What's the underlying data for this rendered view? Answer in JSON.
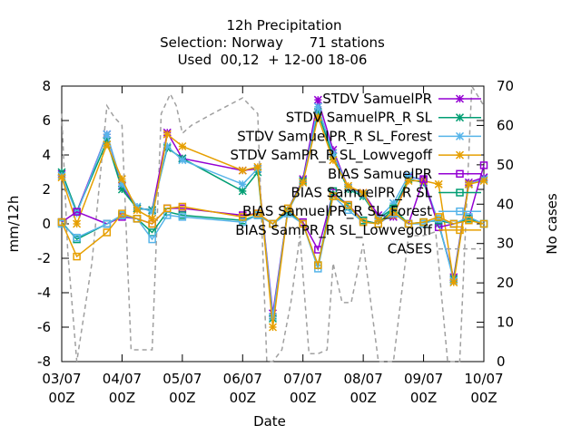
{
  "chart_data": {
    "type": "line",
    "title_lines": [
      "12h Precipitation",
      "Selection: Norway      71 stations",
      "Used  00,12  + 12-00 18-06"
    ],
    "xlabel": "Date",
    "ylabel": "mm/12h",
    "y2label": "No cases",
    "xlim": [
      0,
      14
    ],
    "ylim": [
      -8,
      8
    ],
    "y2lim": [
      0,
      70
    ],
    "x_ticks": [
      {
        "x": 0,
        "line1": "03/07",
        "line2": "00Z"
      },
      {
        "x": 2,
        "line1": "04/07",
        "line2": "00Z"
      },
      {
        "x": 4,
        "line1": "05/07",
        "line2": "00Z"
      },
      {
        "x": 6,
        "line1": "06/07",
        "line2": "00Z"
      },
      {
        "x": 8,
        "line1": "07/07",
        "line2": "00Z"
      },
      {
        "x": 10,
        "line1": "08/07",
        "line2": "00Z"
      },
      {
        "x": 12,
        "line1": "09/07",
        "line2": "00Z"
      },
      {
        "x": 14,
        "line1": "10/07",
        "line2": "00Z"
      }
    ],
    "y_ticks": [
      "-8",
      "-6",
      "-4",
      "-2",
      "0",
      "2",
      "4",
      "6",
      "8"
    ],
    "y2_ticks": [
      "0",
      "10",
      "20",
      "30",
      "40",
      "50",
      "60",
      "70"
    ],
    "x": [
      0,
      0.5,
      1.5,
      2,
      2.5,
      3,
      3.5,
      4,
      6,
      6.5,
      7,
      7.5,
      8,
      8.5,
      9,
      9.5,
      10,
      10.5,
      11,
      11.5,
      12,
      12.5,
      13,
      13.5,
      14
    ],
    "series": [
      {
        "name": "STDV SamuelPR",
        "color": "#9400d3",
        "marker": "x",
        "axis": "y1",
        "values": [
          2.9,
          0.7,
          5.2,
          2.2,
          0.9,
          0.8,
          5.3,
          3.8,
          3.1,
          3.2,
          -5.2,
          0.8,
          2.6,
          7.2,
          4.3,
          2.1,
          1.8,
          0.5,
          0.4,
          2.7,
          2.6,
          0.0,
          -3.1,
          2.4,
          2.7
        ]
      },
      {
        "name": "STDV SamuelPR_R SL",
        "color": "#009e73",
        "marker": "x",
        "axis": "y1",
        "values": [
          3.0,
          0.7,
          4.8,
          2.0,
          0.9,
          0.8,
          4.4,
          3.8,
          1.9,
          3.0,
          -5.5,
          0.8,
          2.5,
          6.5,
          3.9,
          2.0,
          1.6,
          0.3,
          0.9,
          2.6,
          2.4,
          0.0,
          -3.2,
          2.3,
          2.6
        ]
      },
      {
        "name": "STDV SamuelPR_R SL_Forest",
        "color": "#56b4e9",
        "marker": "x",
        "axis": "y1",
        "values": [
          2.8,
          0.6,
          5.2,
          2.3,
          1.0,
          0.7,
          4.5,
          3.7,
          2.3,
          3.2,
          -5.4,
          0.7,
          2.4,
          6.8,
          4.1,
          2.1,
          1.7,
          0.3,
          1.2,
          2.8,
          2.5,
          0.1,
          -3.3,
          2.3,
          2.6
        ]
      },
      {
        "name": "STDV SamPR_R SL_Lowvegoff",
        "color": "#e69f00",
        "marker": "x",
        "axis": "y1",
        "values": [
          2.7,
          0.0,
          4.6,
          2.6,
          0.8,
          0.3,
          5.2,
          4.5,
          3.1,
          3.3,
          -6.0,
          0.8,
          2.4,
          6.2,
          3.7,
          2.2,
          1.8,
          0.2,
          0.5,
          2.5,
          2.5,
          2.3,
          -3.4,
          2.3,
          2.5
        ]
      },
      {
        "name": "BIAS SamuelPR",
        "color": "#9400d3",
        "marker": "square",
        "axis": "y1",
        "values": [
          0.1,
          0.7,
          0.0,
          0.4,
          0.3,
          0.0,
          0.9,
          0.9,
          0.5,
          0.6,
          0.0,
          0.7,
          0.1,
          -1.5,
          1.8,
          1.1,
          0.2,
          0.0,
          0.6,
          0.0,
          2.6,
          -0.2,
          0.0,
          0.3,
          3.4
        ]
      },
      {
        "name": "BIAS SamuelPR_R SL",
        "color": "#009e73",
        "marker": "square",
        "axis": "y1",
        "values": [
          0.1,
          -0.9,
          0.0,
          0.5,
          0.3,
          -0.5,
          0.7,
          0.5,
          0.2,
          0.5,
          0.0,
          0.7,
          0.0,
          -2.4,
          1.9,
          1.0,
          0.2,
          0.0,
          0.9,
          0.0,
          0.1,
          0.2,
          0.0,
          0.3,
          0.0
        ]
      },
      {
        "name": "BIAS SamuelPR_R SL_Forest",
        "color": "#56b4e9",
        "marker": "square",
        "axis": "y1",
        "values": [
          0.0,
          -0.8,
          0.0,
          0.5,
          0.3,
          -0.9,
          0.5,
          0.4,
          0.1,
          0.5,
          0.0,
          0.6,
          0.0,
          -2.6,
          1.6,
          0.8,
          0.1,
          0.0,
          0.6,
          0.0,
          0.0,
          0.3,
          0.0,
          0.4,
          0.0
        ]
      },
      {
        "name": "BIAS SamPR_R SL_Lowvegoff",
        "color": "#e69f00",
        "marker": "square",
        "axis": "y1",
        "values": [
          0.1,
          -1.9,
          -0.5,
          0.6,
          0.3,
          0.0,
          0.9,
          1.0,
          0.4,
          0.6,
          0.0,
          0.9,
          0.0,
          -2.4,
          1.6,
          1.1,
          0.1,
          0.0,
          0.7,
          0.0,
          0.1,
          0.4,
          0.0,
          0.2,
          0.0
        ]
      }
    ],
    "cases": {
      "name": "CASES",
      "color": "#a0a0a0",
      "axis": "y2",
      "x": [
        0,
        0.2,
        0.5,
        1.0,
        1.5,
        1.75,
        2.0,
        2.3,
        2.7,
        3.0,
        3.3,
        3.6,
        3.8,
        4.0,
        4.3,
        5.0,
        6.0,
        6.5,
        6.8,
        7.0,
        7.3,
        7.6,
        7.9,
        8.2,
        8.5,
        8.8,
        9.0,
        9.3,
        9.6,
        10.0,
        10.5,
        11.0,
        11.5,
        11.8,
        12.0,
        12.4,
        12.8,
        13.2,
        13.6,
        14.0
      ],
      "values": [
        63,
        28,
        0,
        25,
        65,
        62,
        60,
        3,
        3,
        3,
        63,
        68,
        65,
        58,
        60,
        63,
        67,
        63,
        0,
        0,
        3,
        15,
        32,
        2,
        2,
        3,
        25,
        15,
        15,
        30,
        0,
        0,
        32,
        32,
        32,
        33,
        0,
        0,
        70,
        65
      ]
    },
    "legend": {
      "placement": "top-right",
      "entries": [
        {
          "label": "STDV SamuelPR",
          "ref": 0
        },
        {
          "label": "STDV SamuelPR_R SL",
          "ref": 1
        },
        {
          "label": "STDV SamuelPR_R SL_Forest",
          "ref": 2
        },
        {
          "label": "STDV SamPR_R SL_Lowvegoff",
          "ref": 3
        },
        {
          "label": "BIAS SamuelPR",
          "ref": 4
        },
        {
          "label": "BIAS SamuelPR_R SL",
          "ref": 5
        },
        {
          "label": "BIAS SamuelPR_R SL_Forest",
          "ref": 6
        },
        {
          "label": "BIAS SamPR_R SL_Lowvegoff",
          "ref": 7
        },
        {
          "label": "CASES",
          "ref": "cases"
        }
      ]
    },
    "grid": false
  }
}
